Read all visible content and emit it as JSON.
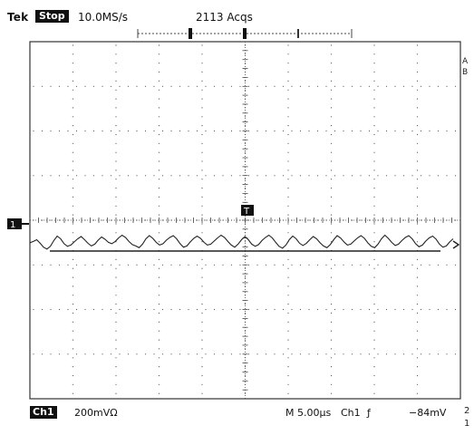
{
  "header": {
    "brand": "Tek",
    "run_state": "Stop",
    "sample_rate": "10.0MS/s",
    "acquisitions": "2113 Acqs"
  },
  "display": {
    "channel_marker": "1",
    "trigger_marker": "T",
    "trace_color": "#222222",
    "grid_color": "#555555",
    "right_marks": [
      "A",
      "B"
    ],
    "trace_samples": [
      0.24,
      0.18,
      0.1,
      0.26,
      0.44,
      0.52,
      0.4,
      0.14,
      -0.06,
      0.06,
      0.28,
      0.4,
      0.34,
      0.2,
      0.06,
      -0.04,
      0.1,
      0.26,
      0.38,
      0.3,
      0.12,
      -0.02,
      0.08,
      0.22,
      0.28,
      0.18,
      0.02,
      -0.1,
      0.0,
      0.18,
      0.32,
      0.38,
      0.46,
      0.3,
      0.06,
      -0.08,
      0.04,
      0.22,
      0.34,
      0.28,
      0.12,
      0.0,
      -0.08,
      0.06,
      0.28,
      0.44,
      0.38,
      0.2,
      0.04,
      -0.06,
      0.04,
      0.22,
      0.34,
      0.3,
      0.16,
      0.02,
      -0.1,
      0.0,
      0.18,
      0.34,
      0.44,
      0.3,
      0.1,
      -0.04,
      0.1,
      0.3,
      0.4,
      0.32,
      0.14,
      0.0,
      -0.1,
      0.02,
      0.22,
      0.4,
      0.48,
      0.34,
      0.1,
      -0.06,
      0.06,
      0.26,
      0.36,
      0.26,
      0.1,
      -0.04,
      0.06,
      0.24,
      0.38,
      0.46,
      0.32,
      0.1,
      -0.08,
      0.02,
      0.2,
      0.34,
      0.3,
      0.16,
      0.02,
      -0.08,
      0.04,
      0.24,
      0.4,
      0.46,
      0.3,
      0.06,
      -0.1,
      0.04,
      0.22,
      0.36,
      0.3,
      0.14,
      0.0,
      -0.08,
      0.06,
      0.28,
      0.42,
      0.34,
      0.16,
      0.02,
      -0.06,
      0.08,
      0.3,
      0.44,
      0.38,
      0.2,
      0.06
    ]
  },
  "footer": {
    "channel_label": "Ch1",
    "volts_per_div": "200mVΩ",
    "time_per_div": "M 5.00µs",
    "trigger_source": "Ch1",
    "trigger_slope": "ƒ",
    "trigger_level": "−84mV",
    "edge_marks": [
      "2",
      "1"
    ]
  }
}
